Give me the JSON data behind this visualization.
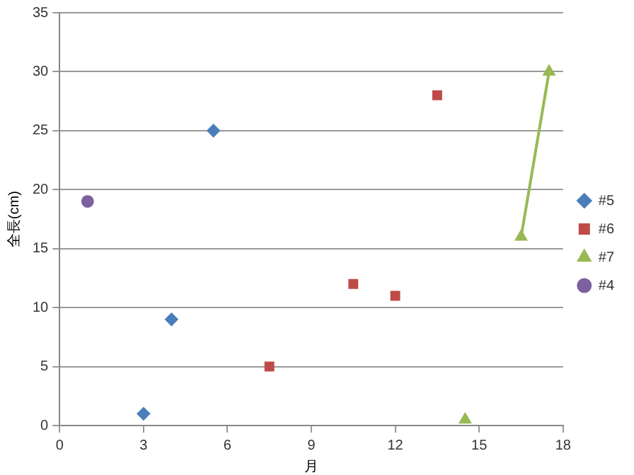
{
  "chart_data": {
    "type": "scatter",
    "xlabel": "月",
    "ylabel": "全長(cm)",
    "xlim": [
      0,
      18
    ],
    "xticks": [
      0,
      3,
      6,
      9,
      12,
      15,
      18
    ],
    "ylim": [
      0,
      35
    ],
    "yticks": [
      0,
      5,
      10,
      15,
      20,
      25,
      30,
      35
    ],
    "grid": "y",
    "legend": "right",
    "series": [
      {
        "name": "#5",
        "color": "#4a7ebb",
        "marker": "diamond",
        "x": [
          3,
          4,
          5.5
        ],
        "values": [
          1,
          9,
          25
        ]
      },
      {
        "name": "#6",
        "color": "#be4b48",
        "marker": "square",
        "x": [
          7.5,
          10.5,
          12,
          13.5
        ],
        "values": [
          5,
          12,
          11,
          28
        ]
      },
      {
        "name": "#7",
        "type": "line",
        "color": "#98b954",
        "marker": "triangle",
        "x": [
          14.5,
          15.5,
          16.5,
          17.5
        ],
        "values": [
          0.5,
          null,
          16,
          30
        ]
      },
      {
        "name": "#4",
        "color": "#7d60a0",
        "marker": "circle",
        "x": [
          1
        ],
        "values": [
          19
        ]
      }
    ]
  }
}
